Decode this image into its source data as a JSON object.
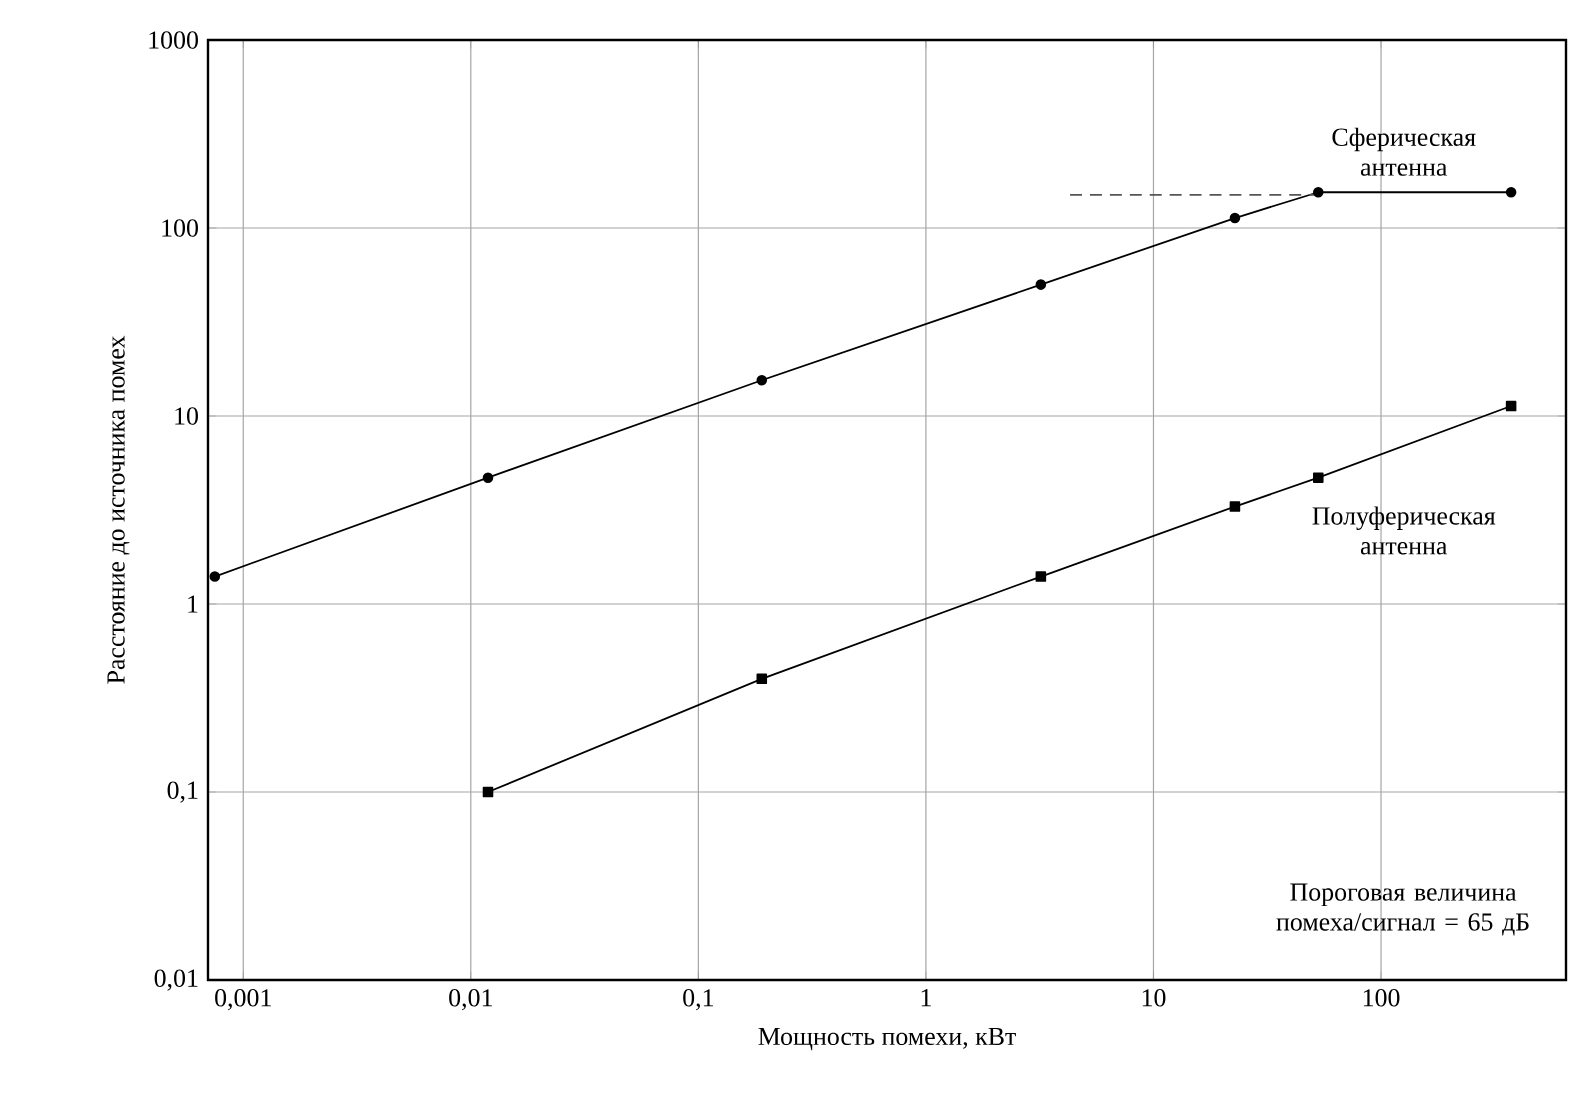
{
  "chart_data": {
    "type": "line",
    "xlabel": "Мощность помехи, кВт",
    "ylabel": "Расстояние до источника помех",
    "log": "xy",
    "grid": true,
    "legend": false,
    "xlim": [
      0.0007,
      650
    ],
    "ylim": [
      0.01,
      1000
    ],
    "xticks": [
      {
        "value": 0.001,
        "label": "0,001"
      },
      {
        "value": 0.01,
        "label": "0,01"
      },
      {
        "value": 0.1,
        "label": "0,1"
      },
      1,
      10,
      100
    ],
    "yticks": [
      {
        "value": 0.01,
        "label": "0,01"
      },
      {
        "value": 0.1,
        "label": "0,1"
      },
      1,
      10,
      100,
      1000
    ],
    "series": [
      {
        "name": "Сферическая антенна",
        "color": "#000000",
        "marker": "circle",
        "line_style": "solid",
        "x": [
          0.00075,
          0.0119,
          0.19,
          3.2,
          22.8,
          53,
          373
        ],
        "values": [
          1.4,
          4.7,
          15.5,
          50,
          113,
          155,
          155
        ]
      },
      {
        "name": "Полуферическая антенна",
        "color": "#000000",
        "marker": "square",
        "line_style": "solid",
        "x": [
          0.0119,
          0.19,
          3.2,
          22.8,
          53,
          373
        ],
        "values": [
          0.1,
          0.4,
          1.4,
          3.3,
          4.7,
          11.3
        ]
      },
      {
        "color": "#555555",
        "marker": "none",
        "line_style": "dashed",
        "x": [
          4.3,
          53
        ],
        "values": [
          150,
          150
        ]
      }
    ],
    "annotations": [
      "Пороговая величина помеха/сигнал = 65 дБ"
    ]
  }
}
